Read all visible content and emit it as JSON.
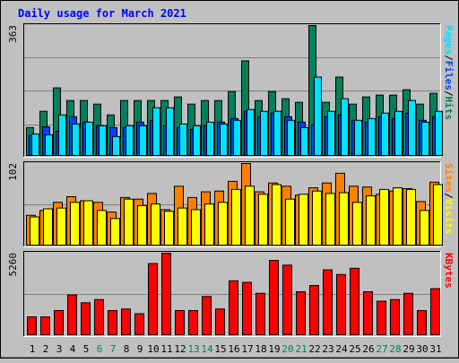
{
  "title": "Daily usage for March 2021",
  "colors": {
    "background": "#c0c0c0",
    "title_text": "#0000ff",
    "hits": "#00805c",
    "files": "#0040ff",
    "pages": "#00e0ff",
    "visits": "#ffff00",
    "sites": "#ff8000",
    "kbytes": "#ff0000",
    "weekend_day": "#00805c"
  },
  "chart_data": [
    {
      "type": "bar",
      "name_panel": "hits-files-pages",
      "categories": [
        "1",
        "2",
        "3",
        "4",
        "5",
        "6",
        "7",
        "8",
        "9",
        "10",
        "11",
        "12",
        "13",
        "14",
        "15",
        "16",
        "17",
        "18",
        "19",
        "20",
        "21",
        "22",
        "23",
        "24",
        "25",
        "26",
        "27",
        "28",
        "29",
        "30",
        "31"
      ],
      "max_label": "363",
      "ylim": [
        0,
        363
      ],
      "legend": [
        "Pages",
        "Files",
        "Hits"
      ],
      "series": [
        {
          "name": "Hits",
          "values": [
            80,
            125,
            190,
            155,
            155,
            145,
            115,
            155,
            155,
            155,
            155,
            165,
            145,
            155,
            155,
            180,
            265,
            155,
            180,
            160,
            150,
            363,
            150,
            220,
            145,
            165,
            170,
            170,
            185,
            145,
            175
          ]
        },
        {
          "name": "Files",
          "values": [
            58,
            82,
            70,
            110,
            95,
            85,
            80,
            80,
            95,
            100,
            85,
            80,
            75,
            85,
            95,
            105,
            125,
            110,
            120,
            110,
            95,
            88,
            110,
            115,
            100,
            95,
            110,
            105,
            120,
            100,
            110
          ]
        },
        {
          "name": "Pages",
          "values": [
            62,
            60,
            115,
            90,
            95,
            85,
            55,
            85,
            85,
            135,
            135,
            90,
            85,
            95,
            90,
            100,
            130,
            125,
            125,
            100,
            80,
            220,
            125,
            160,
            100,
            105,
            120,
            125,
            155,
            95,
            125
          ]
        }
      ]
    },
    {
      "type": "bar",
      "name_panel": "visits-sites",
      "categories": [
        "1",
        "2",
        "3",
        "4",
        "5",
        "6",
        "7",
        "8",
        "9",
        "10",
        "11",
        "12",
        "13",
        "14",
        "15",
        "16",
        "17",
        "18",
        "19",
        "20",
        "21",
        "22",
        "23",
        "24",
        "25",
        "26",
        "27",
        "28",
        "29",
        "30",
        "31"
      ],
      "max_label": "102",
      "ylim": [
        0,
        102
      ],
      "legend": [
        "Sites",
        "Visits"
      ],
      "series": [
        {
          "name": "Visits",
          "values": [
            36,
            46,
            47,
            54,
            56,
            44,
            34,
            58,
            50,
            52,
            43,
            47,
            45,
            52,
            54,
            70,
            74,
            64,
            76,
            58,
            64,
            68,
            65,
            66,
            54,
            62,
            70,
            72,
            70,
            44,
            76
          ]
        },
        {
          "name": "Sites",
          "values": [
            38,
            44,
            54,
            61,
            56,
            54,
            42,
            60,
            58,
            65,
            45,
            74,
            60,
            67,
            68,
            80,
            102,
            67,
            78,
            74,
            63,
            72,
            78,
            90,
            74,
            73,
            64,
            68,
            71,
            55,
            79
          ]
        }
      ]
    },
    {
      "type": "bar",
      "name_panel": "kbytes",
      "categories": [
        "1",
        "2",
        "3",
        "4",
        "5",
        "6",
        "7",
        "8",
        "9",
        "10",
        "11",
        "12",
        "13",
        "14",
        "15",
        "16",
        "17",
        "18",
        "19",
        "20",
        "21",
        "22",
        "23",
        "24",
        "25",
        "26",
        "27",
        "28",
        "29",
        "30",
        "31"
      ],
      "max_label": "5260",
      "ylim": [
        0,
        5260
      ],
      "legend": [
        "KBytes"
      ],
      "series": [
        {
          "name": "KBytes",
          "values": [
            1200,
            1200,
            1600,
            2600,
            2100,
            2300,
            1600,
            1700,
            1400,
            4600,
            5260,
            1600,
            1600,
            2500,
            1700,
            3500,
            3400,
            2700,
            4800,
            4500,
            2800,
            3200,
            4200,
            3900,
            4300,
            2800,
            2200,
            2300,
            2700,
            1600,
            3000
          ]
        }
      ]
    }
  ],
  "x_labels": [
    {
      "label": "1",
      "weekend": false
    },
    {
      "label": "2",
      "weekend": false
    },
    {
      "label": "3",
      "weekend": false
    },
    {
      "label": "4",
      "weekend": false
    },
    {
      "label": "5",
      "weekend": false
    },
    {
      "label": "6",
      "weekend": true
    },
    {
      "label": "7",
      "weekend": true
    },
    {
      "label": "8",
      "weekend": false
    },
    {
      "label": "9",
      "weekend": false
    },
    {
      "label": "10",
      "weekend": false
    },
    {
      "label": "11",
      "weekend": false
    },
    {
      "label": "12",
      "weekend": false
    },
    {
      "label": "13",
      "weekend": true
    },
    {
      "label": "14",
      "weekend": true
    },
    {
      "label": "15",
      "weekend": false
    },
    {
      "label": "16",
      "weekend": false
    },
    {
      "label": "17",
      "weekend": false
    },
    {
      "label": "18",
      "weekend": false
    },
    {
      "label": "19",
      "weekend": false
    },
    {
      "label": "20",
      "weekend": true
    },
    {
      "label": "21",
      "weekend": true
    },
    {
      "label": "22",
      "weekend": false
    },
    {
      "label": "23",
      "weekend": false
    },
    {
      "label": "24",
      "weekend": false
    },
    {
      "label": "25",
      "weekend": false
    },
    {
      "label": "26",
      "weekend": false
    },
    {
      "label": "27",
      "weekend": true
    },
    {
      "label": "28",
      "weekend": true
    },
    {
      "label": "29",
      "weekend": false
    },
    {
      "label": "30",
      "weekend": false
    },
    {
      "label": "31",
      "weekend": false
    }
  ]
}
